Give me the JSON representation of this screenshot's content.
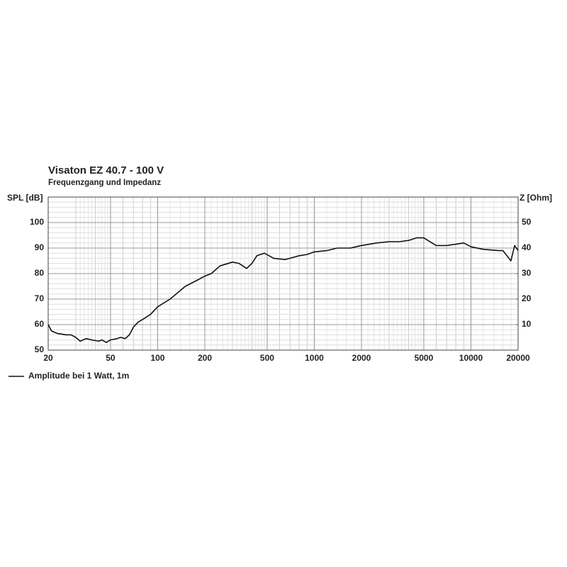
{
  "chart_data": {
    "type": "line",
    "title": "Visaton EZ 40.7 - 100 V",
    "subtitle": "Frequenzgang und Impedanz",
    "y_label": "SPL [dB]",
    "y2_label": "Z [Ohm]",
    "xscale": "log",
    "grid": true,
    "legend": "bottom-left",
    "xlim": [
      20,
      20000
    ],
    "xticks": [
      20,
      50,
      100,
      200,
      500,
      1000,
      2000,
      5000,
      10000,
      20000
    ],
    "ylim": [
      50,
      110
    ],
    "yticks": [
      50,
      60,
      70,
      80,
      90,
      100
    ],
    "y2lim": [
      0,
      60
    ],
    "y2ticks": [
      10,
      20,
      30,
      40,
      50
    ],
    "x": [
      20,
      21,
      23,
      26,
      28,
      30,
      32,
      35,
      38,
      42,
      44,
      47,
      50,
      55,
      58,
      62,
      66,
      70,
      75,
      80,
      90,
      100,
      120,
      150,
      180,
      200,
      220,
      250,
      300,
      330,
      370,
      400,
      430,
      480,
      550,
      650,
      700,
      800,
      900,
      1000,
      1200,
      1400,
      1700,
      2000,
      2500,
      3000,
      3500,
      4000,
      4500,
      5000,
      6000,
      7000,
      8000,
      9000,
      10000,
      12000,
      15000,
      16000,
      18000,
      19000,
      20000
    ],
    "series": [
      {
        "name": "Amplitude bei 1 Watt, 1m",
        "color": "#111111",
        "values": [
          60,
          57.5,
          56.5,
          56,
          56,
          55,
          53.5,
          54.5,
          54,
          53.5,
          54,
          53,
          54,
          54.5,
          55,
          54.5,
          56,
          59,
          61,
          62,
          64,
          67,
          70,
          75,
          77.5,
          79,
          80,
          83,
          84.5,
          84,
          82,
          84,
          87,
          88,
          86,
          85.5,
          86,
          87,
          87.5,
          88.5,
          89,
          90,
          90,
          91,
          92,
          92.5,
          92.5,
          93,
          94,
          94,
          91,
          91,
          91.5,
          92,
          90.5,
          89.5,
          89,
          89,
          85,
          91,
          89
        ]
      }
    ]
  }
}
